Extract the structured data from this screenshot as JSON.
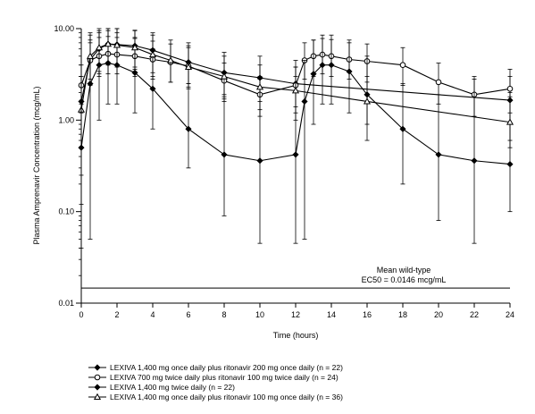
{
  "chart_data": {
    "type": "line",
    "title": "",
    "xlabel": "Time (hours)",
    "ylabel": "Plasma Amprenavir Concentration (mcg/mL)",
    "yscale": "log",
    "xlim": [
      0,
      24
    ],
    "ylim": [
      0.01,
      10
    ],
    "xticks": [
      0,
      2,
      4,
      6,
      8,
      10,
      12,
      14,
      16,
      18,
      20,
      22,
      24
    ],
    "yticks": [
      0.01,
      0.1,
      1,
      10
    ],
    "ytick_labels": [
      "0.01",
      "0.10",
      "1.00",
      "10.00"
    ],
    "grid": false,
    "legend_position": "below",
    "reference_line": {
      "y": 0.0146,
      "label_line1": "Mean wild-type",
      "label_line2": "EC50 = 0.0146 mcg/mL"
    },
    "series": [
      {
        "name": "LEXIVA 1,400 mg once daily plus ritonavir 200 mg once daily (n = 22)",
        "marker": "diamond-filled",
        "x": [
          0,
          0.5,
          1,
          1.5,
          2,
          3,
          4,
          6,
          8,
          10,
          12,
          24
        ],
        "y": [
          1.6,
          4.6,
          6.0,
          6.8,
          6.7,
          6.5,
          5.8,
          4.3,
          3.3,
          2.9,
          2.5,
          1.65
        ],
        "err_low": [
          0.25,
          2.4,
          3.2,
          4.0,
          4.0,
          3.8,
          3.3,
          2.5,
          1.8,
          1.6,
          1.0,
          0.6
        ],
        "err_high": [
          2.5,
          8.5,
          9.5,
          10.0,
          10.0,
          9.6,
          9.0,
          7.0,
          5.5,
          5.0,
          4.5,
          3.0
        ]
      },
      {
        "name": "LEXIVA 700 mg twice daily plus ritonavir 100 mg twice daily (n = 24)",
        "marker": "circle-open",
        "x": [
          0,
          0.5,
          1,
          1.5,
          2,
          3,
          4,
          5,
          6,
          8,
          10,
          12,
          12.5,
          13,
          13.5,
          14,
          15,
          16,
          18,
          20,
          22,
          24
        ],
        "y": [
          2.4,
          4.5,
          5.0,
          5.3,
          5.2,
          5.0,
          4.6,
          4.3,
          3.9,
          2.7,
          1.9,
          2.4,
          4.5,
          5.0,
          5.2,
          5.0,
          4.6,
          4.4,
          4.0,
          2.6,
          1.9,
          2.2
        ],
        "err_low": [
          1.2,
          2.8,
          3.0,
          3.2,
          3.2,
          3.0,
          2.8,
          2.6,
          2.3,
          1.6,
          1.1,
          1.4,
          2.8,
          3.0,
          3.2,
          3.0,
          2.8,
          2.6,
          2.4,
          1.5,
          1.1,
          1.2
        ],
        "err_high": [
          4.0,
          7.0,
          8.0,
          8.2,
          8.0,
          7.8,
          7.3,
          6.8,
          6.2,
          4.2,
          3.0,
          3.8,
          7.0,
          7.5,
          7.8,
          7.6,
          7.0,
          6.8,
          6.2,
          4.2,
          3.0,
          3.6
        ]
      },
      {
        "name": "LEXIVA 1,400 mg twice daily (n = 22)",
        "marker": "diamond-filled",
        "x": [
          0,
          0.5,
          1,
          1.5,
          2,
          3,
          4,
          6,
          8,
          10,
          12,
          12.5,
          13,
          13.5,
          14,
          15,
          16,
          18,
          20,
          22,
          24
        ],
        "y": [
          0.5,
          2.5,
          4.0,
          4.2,
          4.0,
          3.3,
          2.2,
          0.8,
          0.42,
          0.36,
          0.42,
          1.6,
          3.2,
          4.0,
          4.0,
          3.4,
          1.9,
          0.8,
          0.42,
          0.36,
          0.33
        ],
        "err_low": [
          0.12,
          0.05,
          1.0,
          1.5,
          1.5,
          1.2,
          0.8,
          0.3,
          0.09,
          0.045,
          0.045,
          0.05,
          0.9,
          1.5,
          1.5,
          1.2,
          0.6,
          0.2,
          0.08,
          0.045,
          0.1
        ],
        "err_high": [
          1.5,
          7.5,
          9.0,
          9.5,
          9.0,
          8.0,
          6.0,
          2.5,
          1.9,
          2.8,
          3.0,
          4.5,
          7.5,
          8.5,
          8.5,
          7.5,
          5.0,
          2.5,
          1.9,
          2.8,
          1.8
        ]
      },
      {
        "name": "LEXIVA 1,400 mg once daily plus ritonavir 100 mg once daily (n = 36)",
        "marker": "triangle-open",
        "x": [
          0,
          0.5,
          1,
          1.5,
          2,
          3,
          4,
          5,
          6,
          8,
          10,
          12,
          16,
          24
        ],
        "y": [
          1.3,
          5.0,
          6.2,
          6.8,
          6.6,
          6.2,
          5.2,
          4.5,
          3.8,
          3.0,
          2.3,
          2.1,
          1.6,
          0.95
        ],
        "err_low": [
          0.04,
          2.5,
          3.4,
          4.0,
          3.8,
          3.6,
          3.0,
          2.6,
          2.2,
          1.7,
          1.3,
          1.2,
          0.9,
          0.5
        ],
        "err_high": [
          3.0,
          9.0,
          10.0,
          10.0,
          10.0,
          9.5,
          8.5,
          7.5,
          6.5,
          5.0,
          4.0,
          3.8,
          3.0,
          2.0
        ]
      }
    ]
  }
}
